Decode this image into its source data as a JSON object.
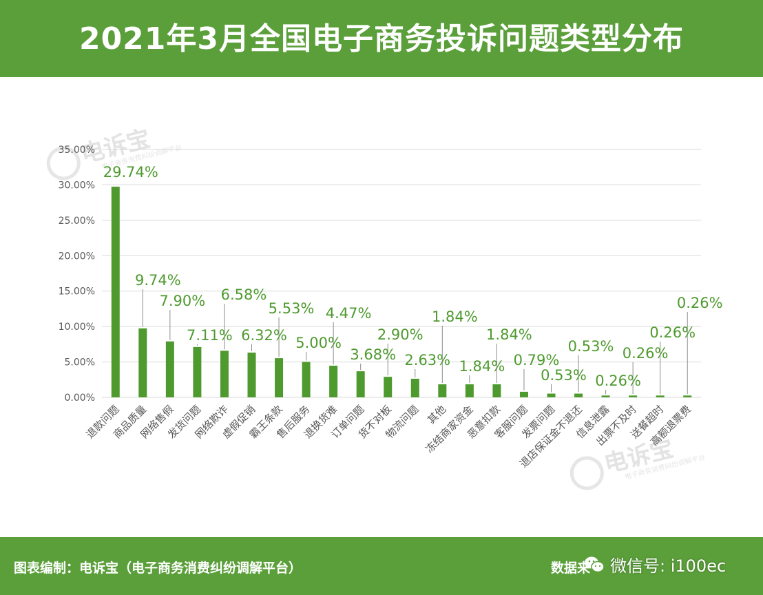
{
  "header": {
    "title": "2021年3月全国电子商务投诉问题类型分布"
  },
  "footer": {
    "credit": "图表编制：电诉宝（电子商务消费纠纷调解平台）",
    "source_prefix": "数据来",
    "wechat": "微信号: i100ec"
  },
  "watermark": {
    "brand": "电诉宝",
    "sub": "电子商务消费纠纷调解平台"
  },
  "colors": {
    "accent": "#5b9f3a",
    "bar": "#4e9a2e",
    "grid": "#d9d9d9",
    "axis_text": "#595959"
  },
  "chart_data": {
    "type": "bar",
    "title": "2021年3月全国电子商务投诉问题类型分布",
    "xlabel": "",
    "ylabel": "",
    "ylim": [
      0,
      35
    ],
    "yticks": [
      "0.00%",
      "5.00%",
      "10.00%",
      "15.00%",
      "20.00%",
      "25.00%",
      "30.00%",
      "35.00%"
    ],
    "grid": true,
    "legend": "none",
    "categories": [
      "退款问题",
      "商品质量",
      "网络售假",
      "发货问题",
      "网络欺诈",
      "虚假促销",
      "霸王条款",
      "售后服务",
      "退换货难",
      "订单问题",
      "货不对板",
      "物流问题",
      "其他",
      "冻结商家资金",
      "恶意扣款",
      "客服问题",
      "发票问题",
      "退店保证金不退还",
      "信息泄露",
      "出票不及时",
      "送餐超时",
      "高额退票费"
    ],
    "values": [
      29.74,
      9.74,
      7.9,
      7.11,
      6.58,
      6.32,
      5.53,
      5.0,
      4.47,
      3.68,
      2.9,
      2.63,
      1.84,
      1.84,
      1.84,
      0.79,
      0.53,
      0.53,
      0.26,
      0.26,
      0.26,
      0.26
    ],
    "data_labels": [
      "29.74%",
      "9.74%",
      "7.90%",
      "7.11%",
      "6.58%",
      "6.32%",
      "5.53%",
      "5.00%",
      "4.47%",
      "3.68%",
      "2.90%",
      "2.63%",
      "1.84%",
      "1.84%",
      "1.84%",
      "0.79%",
      "0.53%",
      "0.53%",
      "0.26%",
      "0.26%",
      "0.26%",
      "0.26%"
    ]
  }
}
